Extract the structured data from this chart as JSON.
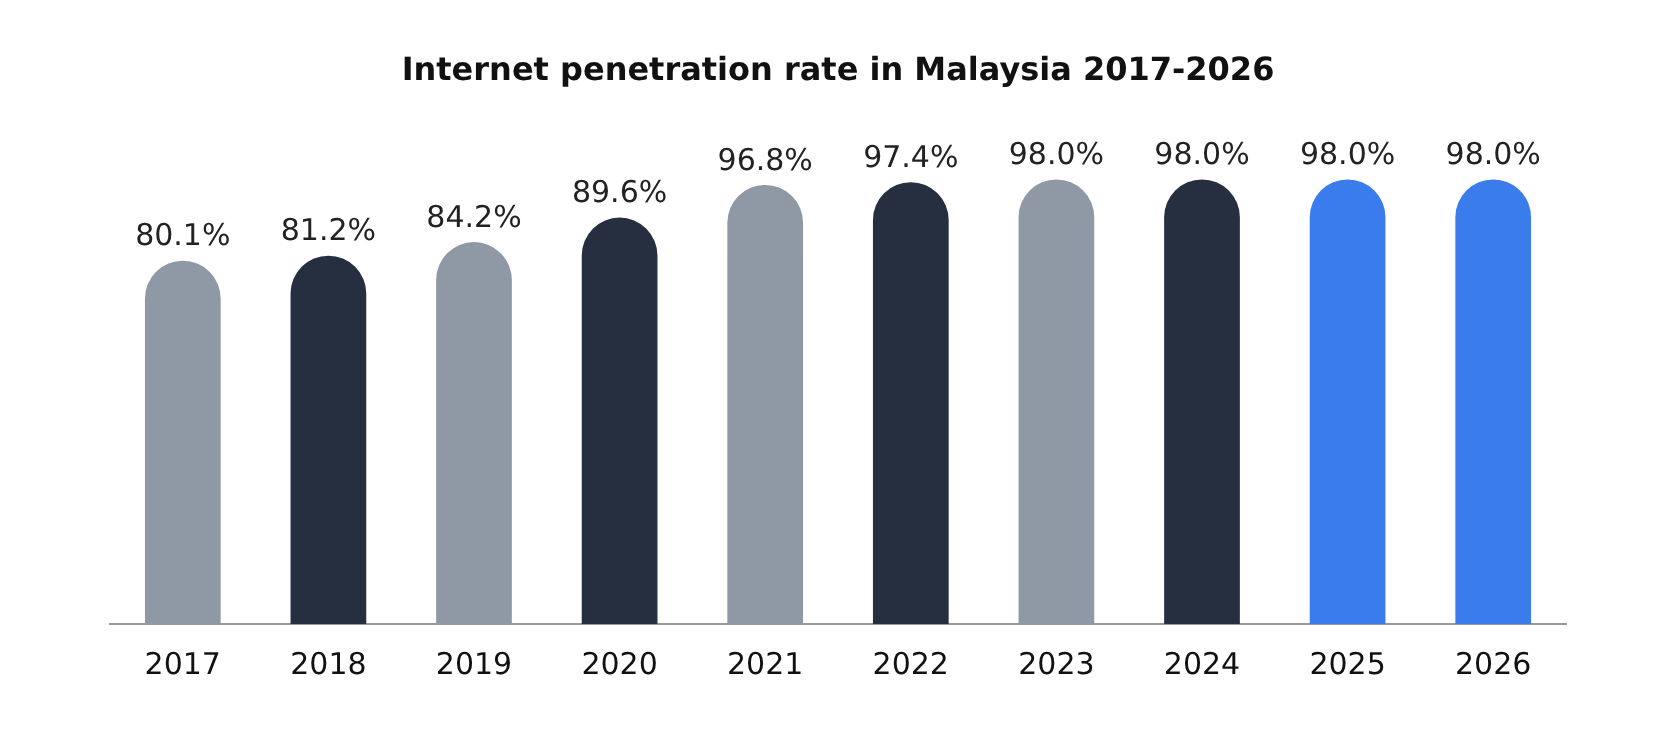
{
  "chart_data": {
    "type": "bar",
    "title": "Internet penetration rate in Malaysia 2017-2026",
    "categories": [
      "2017",
      "2018",
      "2019",
      "2020",
      "2021",
      "2022",
      "2023",
      "2024",
      "2025",
      "2026"
    ],
    "values": [
      80.1,
      81.2,
      84.2,
      89.6,
      96.8,
      97.4,
      98.0,
      98.0,
      98.0,
      98.0
    ],
    "colors": [
      "#8e99a5",
      "#252f40",
      "#8e99a5",
      "#252f40",
      "#8e99a5",
      "#252f40",
      "#8e99a5",
      "#252f40",
      "#3b7ced",
      "#3b7ced"
    ],
    "value_labels": [
      "80.1%",
      "81.2%",
      "84.2%",
      "89.6%",
      "96.8%",
      "97.4%",
      "98.0%",
      "98.0%",
      "98.0%",
      "98.0%"
    ],
    "grid": false,
    "legend": false
  }
}
